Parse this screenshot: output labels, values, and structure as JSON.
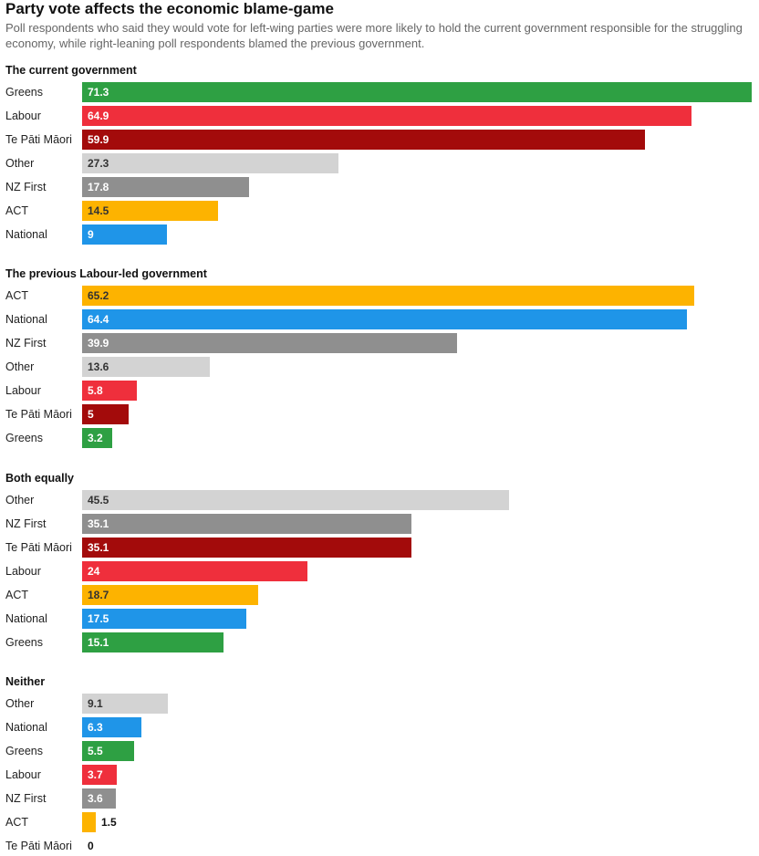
{
  "title": "Party vote affects the economic blame-game",
  "subtitle": "Poll respondents who said they would vote for left-wing parties were more likely to hold the current government responsible for the struggling economy, while right-leaning poll respondents blamed the previous government.",
  "colors": {
    "Greens": "#2ea043",
    "Labour": "#ef2f3c",
    "Te Pāti Māori": "#a30b0b",
    "Other": "#d3d3d3",
    "NZ First": "#8f8f8f",
    "ACT": "#fdb300",
    "National": "#1f95e8"
  },
  "chart_data": [
    {
      "type": "bar",
      "title": "The current government",
      "categories": [
        "Greens",
        "Labour",
        "Te Pāti Māori",
        "Other",
        "NZ First",
        "ACT",
        "National"
      ],
      "values": [
        71.3,
        64.9,
        59.9,
        27.3,
        17.8,
        14.5,
        9
      ]
    },
    {
      "type": "bar",
      "title": "The previous Labour-led government",
      "categories": [
        "ACT",
        "National",
        "NZ First",
        "Other",
        "Labour",
        "Te Pāti Māori",
        "Greens"
      ],
      "values": [
        65.2,
        64.4,
        39.9,
        13.6,
        5.8,
        5,
        3.2
      ]
    },
    {
      "type": "bar",
      "title": "Both equally",
      "categories": [
        "Other",
        "NZ First",
        "Te Pāti Māori",
        "Labour",
        "ACT",
        "National",
        "Greens"
      ],
      "values": [
        45.5,
        35.1,
        35.1,
        24,
        18.7,
        17.5,
        15.1
      ]
    },
    {
      "type": "bar",
      "title": "Neither",
      "categories": [
        "Other",
        "National",
        "Greens",
        "Labour",
        "NZ First",
        "ACT",
        "Te Pāti Māori"
      ],
      "values": [
        9.1,
        6.3,
        5.5,
        3.7,
        3.6,
        1.5,
        0
      ]
    }
  ]
}
